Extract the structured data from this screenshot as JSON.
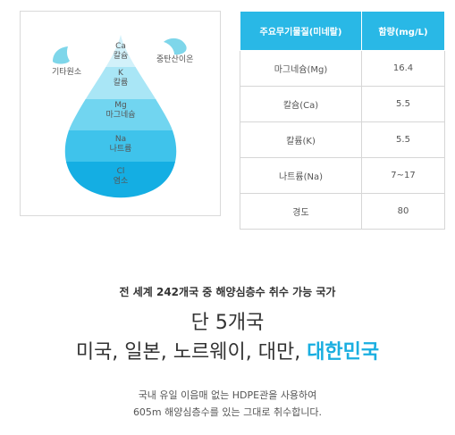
{
  "drop": {
    "layers": [
      {
        "symbol": "Ca",
        "name": "칼슘",
        "color": "#d2f1fa"
      },
      {
        "symbol": "K",
        "name": "칼륨",
        "color": "#a9e6f6"
      },
      {
        "symbol": "Mg",
        "name": "마그네슘",
        "color": "#71d5f0"
      },
      {
        "symbol": "Na",
        "name": "나트륨",
        "color": "#3fc3eb"
      },
      {
        "symbol": "Cl",
        "name": "염소",
        "color": "#14aee3"
      }
    ],
    "left_label": "기타원소",
    "right_label": "중탄산이온",
    "small_drop_color": "#7ed6ea"
  },
  "table": {
    "headers": [
      "주요무기물질(미네랄)",
      "함량(mg/L)"
    ],
    "rows": [
      [
        "마그네슘(Mg)",
        "16.4"
      ],
      [
        "칼슘(Ca)",
        "5.5"
      ],
      [
        "칼륨(K)",
        "5.5"
      ],
      [
        "나트륨(Na)",
        "7~17"
      ],
      [
        "경도",
        "80"
      ]
    ],
    "header_color": "#29b8e6"
  },
  "subtitle": "전 세계 242개국 중 해양심층수 취수 가능 국가",
  "headline": "단 5개국",
  "countries_plain": "미국, 일본, 노르웨이, 대만, ",
  "countries_highlight": "대한민국",
  "highlight_color": "#1aaee0",
  "desc": {
    "line1": "국내 유일 이음매 없는 HDPE관을 사용하여",
    "line2": "605m 해양심층수를 있는 그대로 취수합니다."
  }
}
